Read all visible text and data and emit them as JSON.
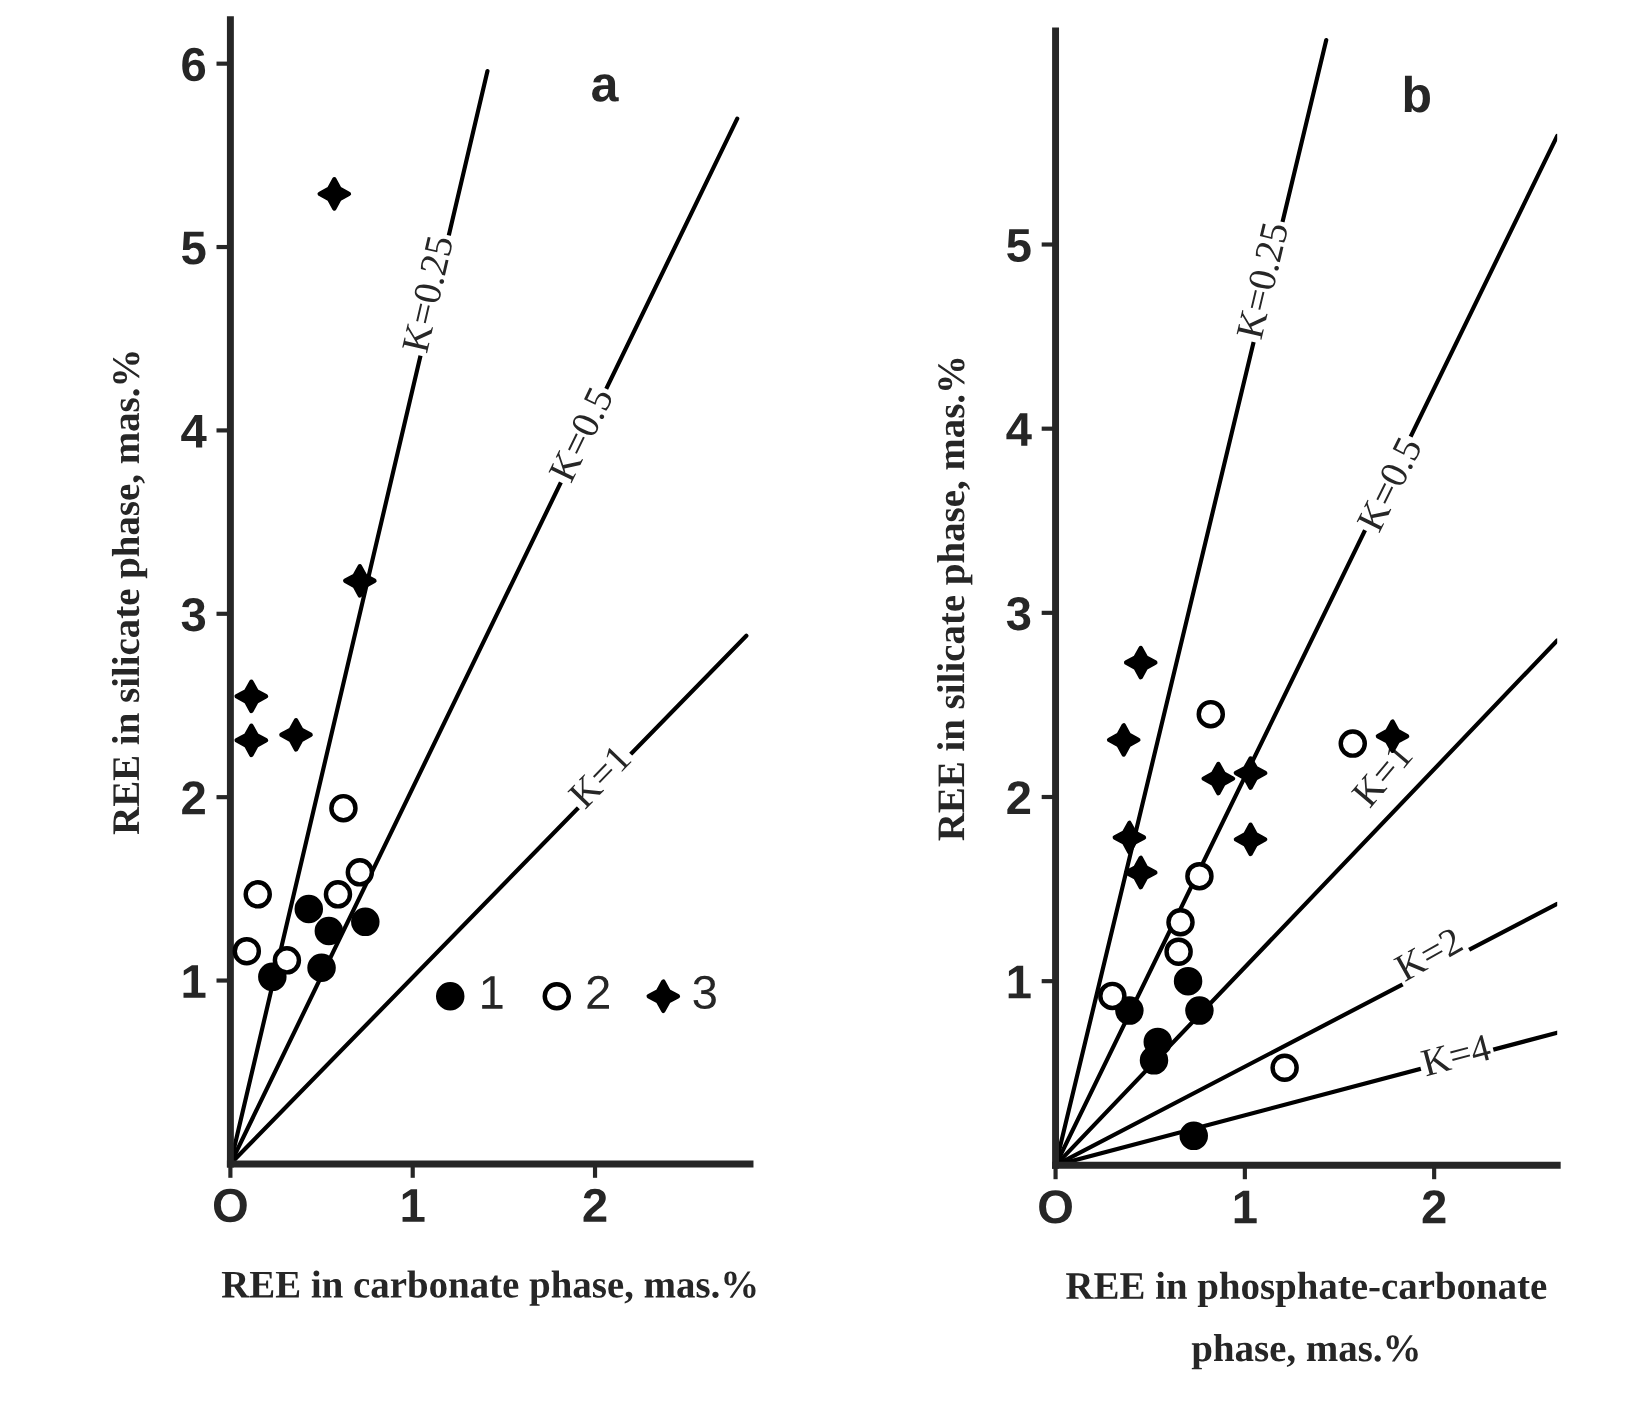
{
  "chart_data": [
    {
      "type": "scatter",
      "xlabel": "REE in carbonate phase, mas.%",
      "ylabel": "REE in silicate phase, mas.%",
      "xlim": [
        0,
        2.85
      ],
      "ylim": [
        0,
        6.24
      ],
      "xticks": [
        {
          "value": 0,
          "label": "O"
        },
        1,
        2
      ],
      "yticks": [
        1,
        2,
        3,
        4,
        5,
        6
      ],
      "grid": false,
      "legend": "bottom right",
      "annotations": [
        "a",
        {
          "text": "K=0.25",
          "x": 1.1,
          "y": 4.74
        },
        {
          "text": "K=0.5",
          "x": 1.94,
          "y": 3.97
        },
        {
          "text": "K=1",
          "x": 2.04,
          "y": 2.1
        }
      ],
      "series": [
        {
          "name": "1",
          "marker": "circle",
          "color": "#000000",
          "x": [
            0.23,
            0.43,
            0.54,
            0.5,
            0.74
          ],
          "values": [
            1.02,
            1.39,
            1.27,
            1.07,
            1.32
          ]
        },
        {
          "name": "2",
          "marker": "circle",
          "color": "#ffffff",
          "x": [
            0.62,
            0.15,
            0.59,
            0.71,
            0.09,
            0.31
          ],
          "values": [
            1.94,
            1.47,
            1.47,
            1.59,
            1.16,
            1.11
          ]
        },
        {
          "name": "3",
          "marker": "star",
          "color": "#000000",
          "x": [
            0.57,
            0.71,
            0.115,
            0.115,
            0.36
          ],
          "values": [
            5.29,
            3.18,
            2.55,
            2.31,
            2.34
          ]
        },
        {
          "type": "line",
          "marker": "none",
          "color": "#000000",
          "x": [
            0,
            1.41
          ],
          "values": [
            0,
            5.96
          ]
        },
        {
          "type": "line",
          "marker": "none",
          "color": "#000000",
          "x": [
            0,
            2.78
          ],
          "values": [
            0,
            5.7
          ]
        },
        {
          "type": "line",
          "marker": "none",
          "color": "#000000",
          "x": [
            0,
            2.83
          ],
          "values": [
            0,
            2.88
          ]
        }
      ]
    },
    {
      "type": "scatter",
      "xlabel": "REE in phosphate-carbonate\nphase, mas.%",
      "ylabel": "REE in silicate phase, mas.%",
      "xlim": [
        0,
        2.65
      ],
      "ylim": [
        0,
        6.16
      ],
      "xticks": [
        {
          "value": 0,
          "label": "O"
        },
        1,
        2
      ],
      "yticks": [
        1,
        2,
        3,
        4,
        5
      ],
      "grid": false,
      "annotations": [
        "b",
        {
          "text": "K=0.25",
          "x": 1.11,
          "y": 4.8
        },
        {
          "text": "K=0.5",
          "x": 1.78,
          "y": 3.69
        },
        {
          "text": "K=1",
          "x": 1.74,
          "y": 2.11
        },
        {
          "text": "K=2",
          "x": 1.98,
          "y": 1.13
        },
        {
          "text": "K=4",
          "x": 2.12,
          "y": 0.58
        }
      ],
      "series": [
        {
          "marker": "circle",
          "color": "#000000",
          "x": [
            0.39,
            0.7,
            0.76,
            0.54,
            0.52,
            0.73
          ],
          "values": [
            0.84,
            1.0,
            0.84,
            0.67,
            0.57,
            0.16
          ]
        },
        {
          "marker": "circle",
          "color": "#ffffff",
          "x": [
            0.82,
            1.57,
            0.76,
            0.66,
            0.65,
            0.3,
            1.21
          ],
          "values": [
            2.45,
            2.29,
            1.57,
            1.32,
            1.16,
            0.92,
            0.53
          ]
        },
        {
          "marker": "star",
          "color": "#000000",
          "x": [
            0.45,
            0.36,
            0.39,
            0.45,
            0.86,
            1.03,
            1.03,
            1.78
          ],
          "values": [
            2.73,
            2.31,
            1.78,
            1.59,
            2.1,
            2.13,
            1.77,
            2.33
          ]
        },
        {
          "type": "line",
          "marker": "none",
          "color": "#000000",
          "x": [
            0,
            1.43
          ],
          "values": [
            0,
            6.11
          ]
        },
        {
          "type": "line",
          "marker": "none",
          "color": "#000000",
          "x": [
            0,
            2.65
          ],
          "values": [
            0,
            5.59
          ]
        },
        {
          "type": "line",
          "marker": "none",
          "color": "#000000",
          "x": [
            0,
            2.65
          ],
          "values": [
            0,
            2.85
          ]
        },
        {
          "type": "line",
          "marker": "none",
          "color": "#000000",
          "x": [
            0,
            2.65
          ],
          "values": [
            0,
            1.42
          ]
        },
        {
          "type": "line",
          "marker": "none",
          "color": "#000000",
          "x": [
            0,
            2.65
          ],
          "values": [
            0,
            0.72
          ]
        }
      ]
    }
  ]
}
